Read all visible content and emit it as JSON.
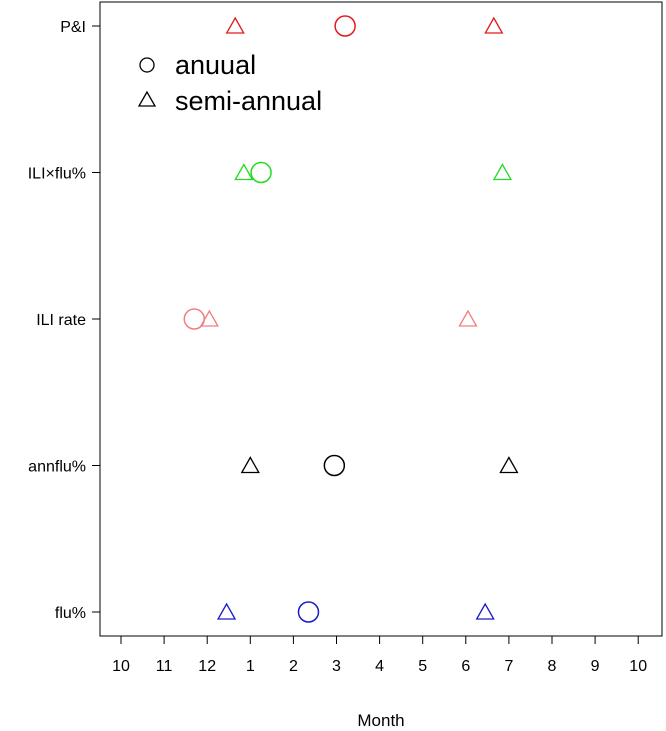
{
  "chart_data": {
    "type": "scatter",
    "xlabel": "Month",
    "ylabel": "",
    "title": "",
    "grid": false,
    "x_positions": [
      0,
      1,
      2,
      3,
      4,
      5,
      6,
      7,
      8,
      9,
      10,
      11,
      12
    ],
    "x_tick_labels": [
      "10",
      "11",
      "12",
      "1",
      "2",
      "3",
      "4",
      "5",
      "6",
      "7",
      "8",
      "9",
      "10"
    ],
    "xlim": [
      -0.5,
      12.5
    ],
    "categories": [
      "flu%",
      "annflu%",
      "ILI rate",
      "ILI×flu%",
      "P&I"
    ],
    "legend": {
      "placement": "top-left",
      "entries": [
        {
          "label": "anuual",
          "marker": "circle"
        },
        {
          "label": "semi-annual",
          "marker": "triangle"
        }
      ]
    },
    "series": [
      {
        "category": "P&I",
        "color": "#e41a1c",
        "annual": [
          5.2
        ],
        "semi_annual": [
          2.65,
          8.65
        ]
      },
      {
        "category": "ILI×flu%",
        "color": "#22dd22",
        "annual": [
          3.25
        ],
        "semi_annual": [
          2.85,
          8.85
        ]
      },
      {
        "category": "ILI rate",
        "color": "#f08080",
        "annual": [
          1.7
        ],
        "semi_annual": [
          2.05,
          8.05
        ]
      },
      {
        "category": "annflu%",
        "color": "#000000",
        "annual": [
          4.95
        ],
        "semi_annual": [
          3.0,
          9.0
        ]
      },
      {
        "category": "flu%",
        "color": "#1a1acc",
        "annual": [
          4.35
        ],
        "semi_annual": [
          2.45,
          8.45
        ]
      }
    ]
  }
}
